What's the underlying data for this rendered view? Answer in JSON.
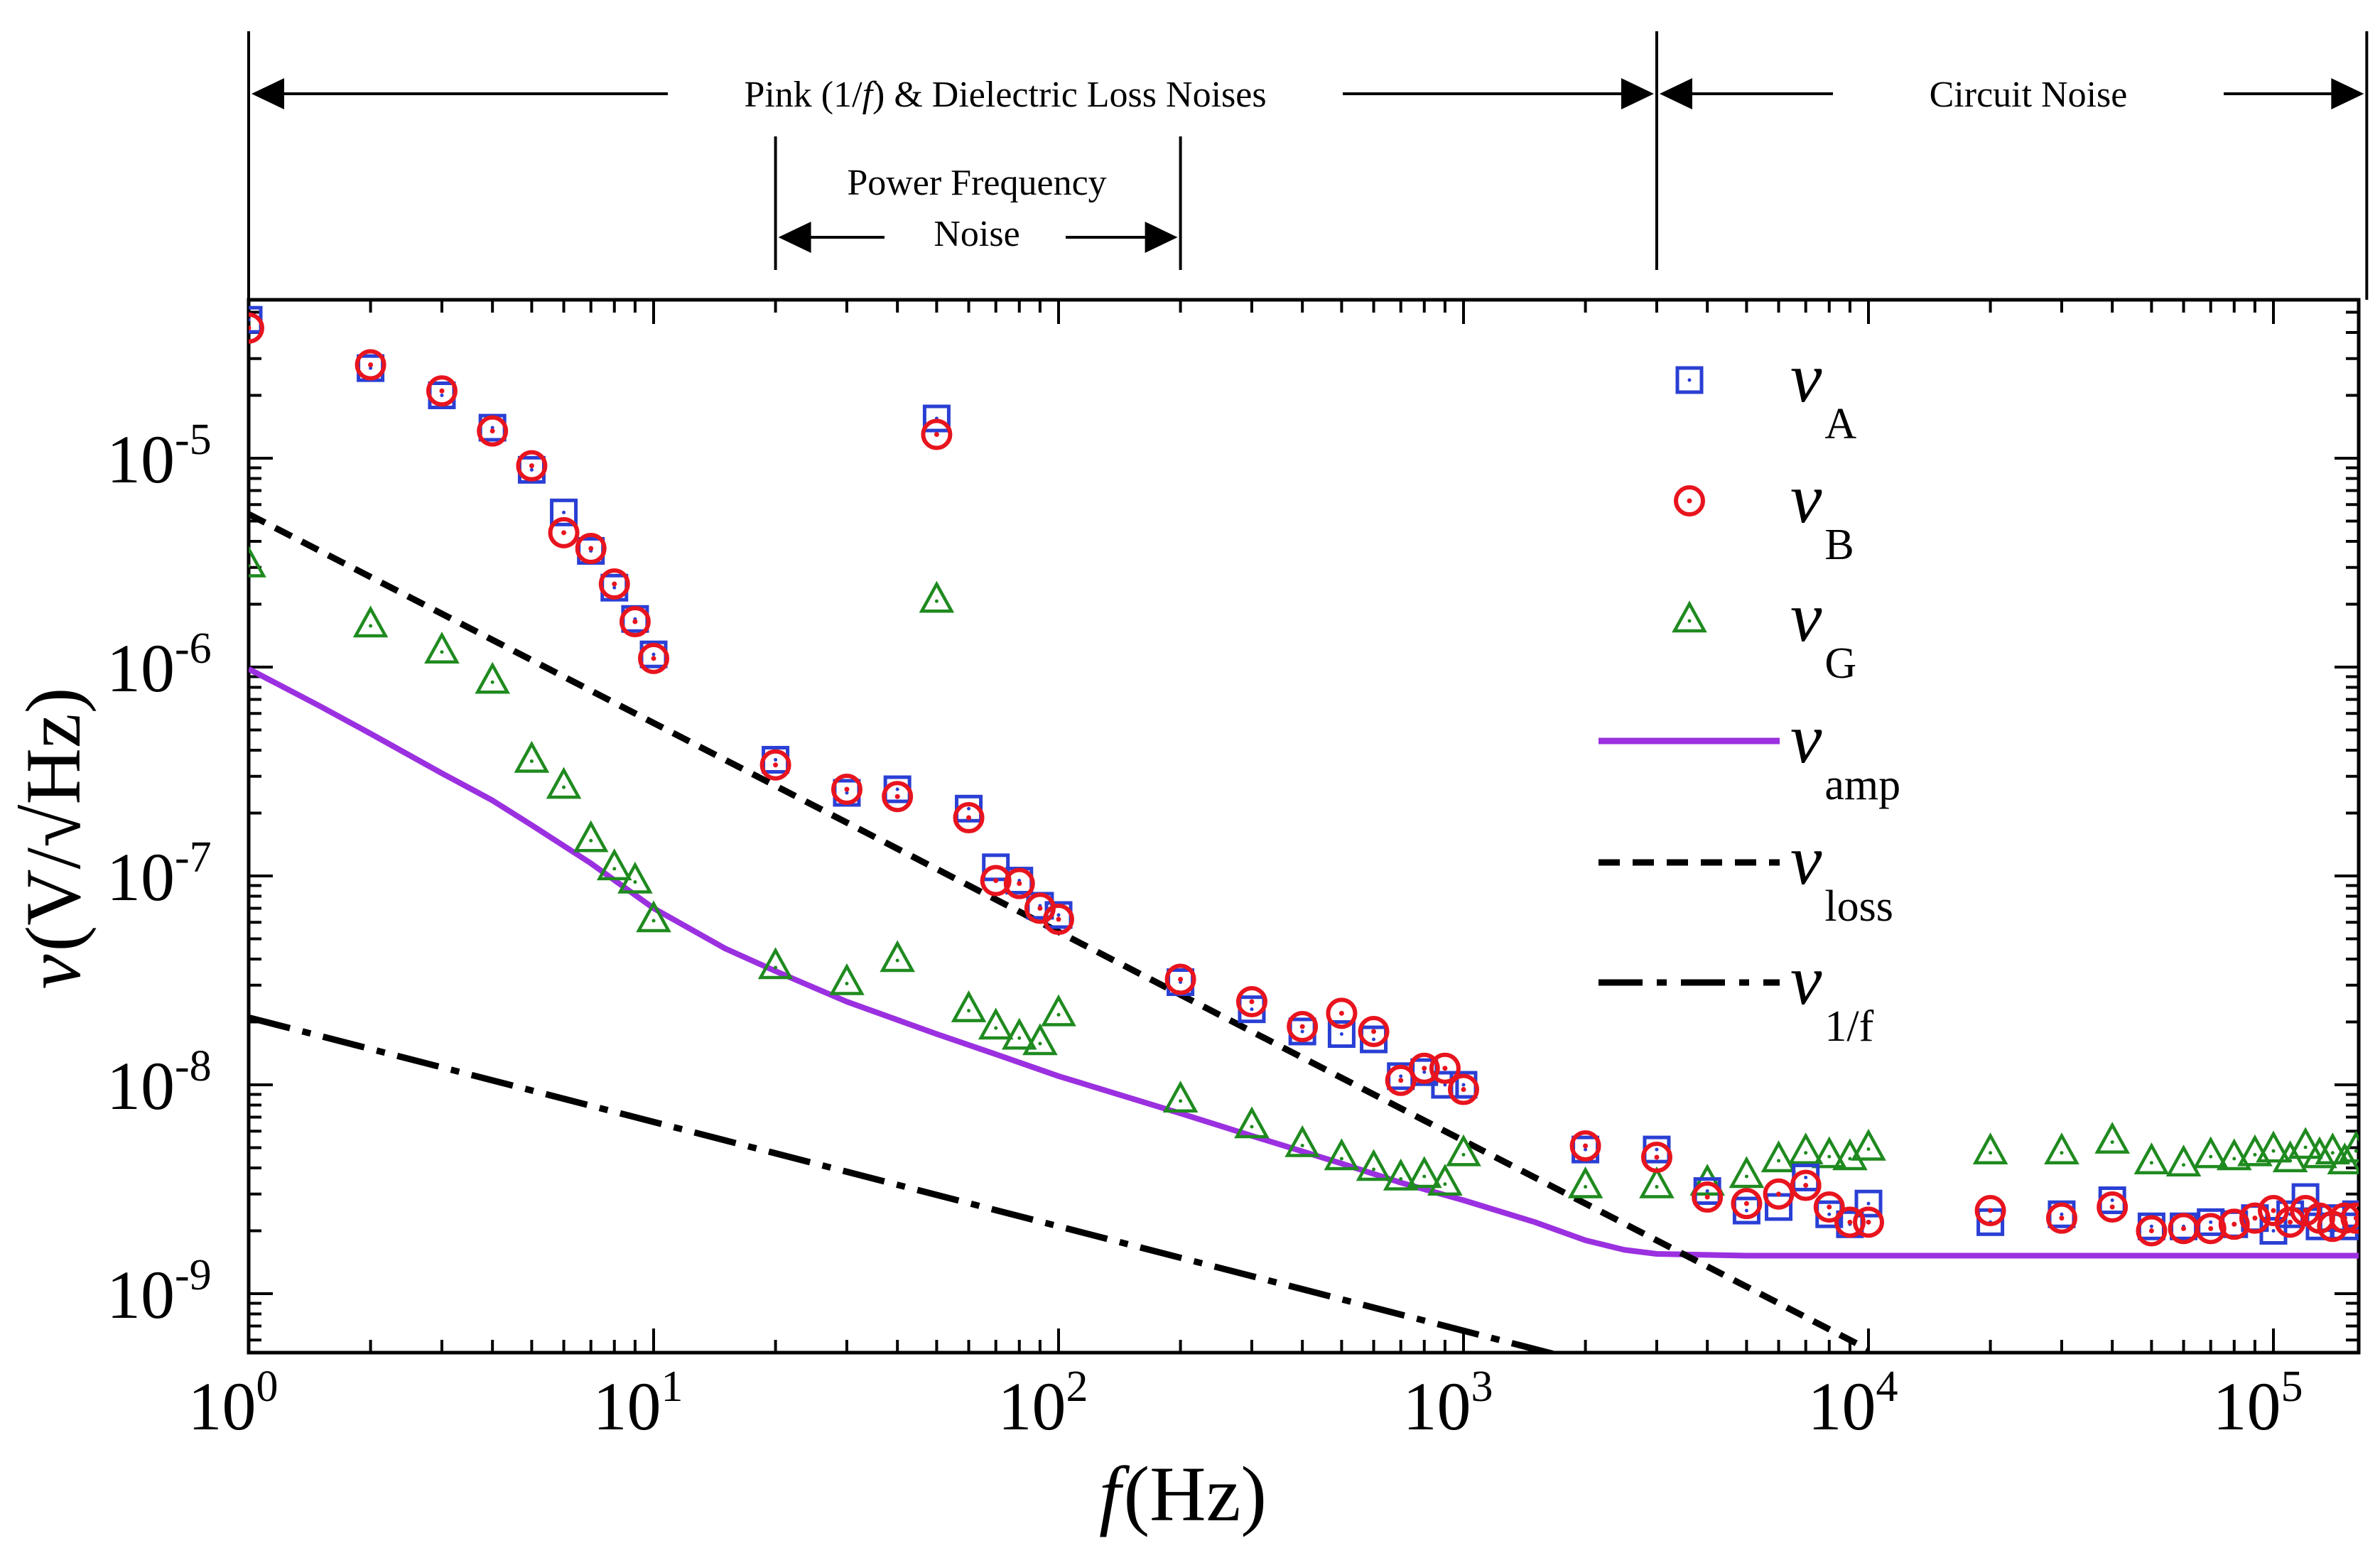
{
  "chart_data": {
    "type": "scatter",
    "title": "",
    "xlabel": "f",
    "xlabel_unit": "(Hz)",
    "ylabel": "v",
    "ylabel_unit": "(V/√Hz)",
    "xscale": "log",
    "yscale": "log",
    "xlim": [
      1,
      170000
    ],
    "ylim": [
      5e-10,
      6e-05
    ],
    "x_tick_labels": [
      {
        "base": "10",
        "exp": "0",
        "value": 1
      },
      {
        "base": "10",
        "exp": "1",
        "value": 10
      },
      {
        "base": "10",
        "exp": "2",
        "value": 100
      },
      {
        "base": "10",
        "exp": "3",
        "value": 1000
      },
      {
        "base": "10",
        "exp": "4",
        "value": 10000
      },
      {
        "base": "10",
        "exp": "5",
        "value": 100000
      }
    ],
    "y_tick_labels": [
      {
        "base": "10",
        "exp": "-9",
        "value": 1e-09
      },
      {
        "base": "10",
        "exp": "-8",
        "value": 1e-08
      },
      {
        "base": "10",
        "exp": "-7",
        "value": 1e-07
      },
      {
        "base": "10",
        "exp": "-6",
        "value": 1e-06
      },
      {
        "base": "10",
        "exp": "-5",
        "value": 1e-05
      }
    ],
    "bands": [
      {
        "label_parts": [
          "Pink (1/",
          "f",
          ") & Dielectric Loss Noises"
        ],
        "from": 1,
        "to": 3000
      },
      {
        "label": "Circuit Noise",
        "from": 3000,
        "to": 170000
      },
      {
        "label_line1": "Power Frequency",
        "label_line2": "Noise",
        "from": 20,
        "to": 200
      }
    ],
    "legend": [
      {
        "key": "vA",
        "symbol": "v",
        "sub": "A",
        "marker": "square",
        "color": "#2a3fd4"
      },
      {
        "key": "vB",
        "symbol": "v",
        "sub": "B",
        "marker": "circle",
        "color": "#e8141e"
      },
      {
        "key": "vG",
        "symbol": "v",
        "sub": "G",
        "marker": "triangle",
        "color": "#1f8a1f"
      },
      {
        "key": "vamp",
        "symbol": "v",
        "sub": "amp",
        "marker": "line-solid",
        "color": "#9b30e0"
      },
      {
        "key": "vloss",
        "symbol": "v",
        "sub": "loss",
        "marker": "line-dash",
        "color": "#000000"
      },
      {
        "key": "v1f",
        "symbol": "v",
        "sub": "1/f",
        "marker": "line-dashdot",
        "color": "#000000"
      }
    ],
    "series": [
      {
        "name": "vA",
        "marker": "square",
        "color": "#2a3fd4",
        "points": [
          [
            1,
            4.6e-05
          ],
          [
            2,
            2.7e-05
          ],
          [
            3,
            2e-05
          ],
          [
            4,
            1.4e-05
          ],
          [
            5,
            8.8e-06
          ],
          [
            6,
            5.5e-06
          ],
          [
            7,
            3.6e-06
          ],
          [
            8,
            2.4e-06
          ],
          [
            9,
            1.7e-06
          ],
          [
            10,
            1.15e-06
          ],
          [
            20,
            3.6e-07
          ],
          [
            30,
            2.5e-07
          ],
          [
            40,
            2.6e-07
          ],
          [
            50,
            1.55e-05
          ],
          [
            60,
            2.1e-07
          ],
          [
            70,
            1.1e-07
          ],
          [
            80,
            9.5e-08
          ],
          [
            90,
            7.2e-08
          ],
          [
            100,
            6.5e-08
          ],
          [
            200,
            3.1e-08
          ],
          [
            300,
            2.3e-08
          ],
          [
            400,
            1.8e-08
          ],
          [
            500,
            1.75e-08
          ],
          [
            600,
            1.65e-08
          ],
          [
            700,
            1.1e-08
          ],
          [
            800,
            1.15e-08
          ],
          [
            900,
            1e-08
          ],
          [
            1000,
            1e-08
          ],
          [
            2000,
            4.9e-09
          ],
          [
            3000,
            4.9e-09
          ],
          [
            4000,
            3.1e-09
          ],
          [
            5000,
            2.5e-09
          ],
          [
            6000,
            2.6e-09
          ],
          [
            7000,
            3.6e-09
          ],
          [
            8000,
            2.4e-09
          ],
          [
            9000,
            2.15e-09
          ],
          [
            10000,
            2.7e-09
          ],
          [
            20000,
            2.2e-09
          ],
          [
            30000,
            2.4e-09
          ],
          [
            40000,
            2.8e-09
          ],
          [
            50000,
            2.1e-09
          ],
          [
            60000,
            2.1e-09
          ],
          [
            70000,
            2.2e-09
          ],
          [
            80000,
            2.15e-09
          ],
          [
            90000,
            2.3e-09
          ],
          [
            100000,
            2e-09
          ],
          [
            110000,
            2.4e-09
          ],
          [
            120000,
            2.9e-09
          ],
          [
            130000,
            2.1e-09
          ],
          [
            140000,
            2.3e-09
          ],
          [
            150000,
            2.1e-09
          ],
          [
            160000,
            2.4e-09
          ]
        ]
      },
      {
        "name": "vB",
        "marker": "circle",
        "color": "#e8141e",
        "points": [
          [
            1,
            4.2e-05
          ],
          [
            2,
            2.8e-05
          ],
          [
            3,
            2.1e-05
          ],
          [
            4,
            1.35e-05
          ],
          [
            5,
            9.2e-06
          ],
          [
            6,
            4.4e-06
          ],
          [
            7,
            3.7e-06
          ],
          [
            8,
            2.5e-06
          ],
          [
            9,
            1.65e-06
          ],
          [
            10,
            1.1e-06
          ],
          [
            20,
            3.4e-07
          ],
          [
            30,
            2.6e-07
          ],
          [
            40,
            2.4e-07
          ],
          [
            50,
            1.3e-05
          ],
          [
            60,
            1.9e-07
          ],
          [
            70,
            9.5e-08
          ],
          [
            80,
            9.2e-08
          ],
          [
            90,
            7e-08
          ],
          [
            100,
            6.2e-08
          ],
          [
            200,
            3.2e-08
          ],
          [
            300,
            2.5e-08
          ],
          [
            400,
            1.9e-08
          ],
          [
            500,
            2.2e-08
          ],
          [
            600,
            1.8e-08
          ],
          [
            700,
            1.05e-08
          ],
          [
            800,
            1.2e-08
          ],
          [
            900,
            1.2e-08
          ],
          [
            1000,
            9.5e-09
          ],
          [
            2000,
            5.1e-09
          ],
          [
            3000,
            4.5e-09
          ],
          [
            4000,
            2.9e-09
          ],
          [
            5000,
            2.7e-09
          ],
          [
            6000,
            3e-09
          ],
          [
            7000,
            3.3e-09
          ],
          [
            8000,
            2.6e-09
          ],
          [
            9000,
            2.2e-09
          ],
          [
            10000,
            2.2e-09
          ],
          [
            20000,
            2.5e-09
          ],
          [
            30000,
            2.3e-09
          ],
          [
            40000,
            2.6e-09
          ],
          [
            50000,
            2e-09
          ],
          [
            60000,
            2.05e-09
          ],
          [
            70000,
            2.05e-09
          ],
          [
            80000,
            2.15e-09
          ],
          [
            90000,
            2.3e-09
          ],
          [
            100000,
            2.5e-09
          ],
          [
            110000,
            2.2e-09
          ],
          [
            120000,
            2.5e-09
          ],
          [
            130000,
            2.3e-09
          ],
          [
            140000,
            2.1e-09
          ],
          [
            150000,
            2.3e-09
          ],
          [
            160000,
            2.3e-09
          ]
        ]
      },
      {
        "name": "vG",
        "marker": "triangle",
        "color": "#1f8a1f",
        "points": [
          [
            1,
            3.1e-06
          ],
          [
            2,
            1.6e-06
          ],
          [
            3,
            1.2e-06
          ],
          [
            4,
            8.6e-07
          ],
          [
            5,
            3.6e-07
          ],
          [
            6,
            2.7e-07
          ],
          [
            7,
            1.5e-07
          ],
          [
            8,
            1.1e-07
          ],
          [
            9,
            9.5e-08
          ],
          [
            10,
            6.2e-08
          ],
          [
            20,
            3.7e-08
          ],
          [
            30,
            3.1e-08
          ],
          [
            40,
            4e-08
          ],
          [
            50,
            2.1e-06
          ],
          [
            60,
            2.3e-08
          ],
          [
            70,
            1.9e-08
          ],
          [
            80,
            1.7e-08
          ],
          [
            90,
            1.6e-08
          ],
          [
            100,
            2.2e-08
          ],
          [
            200,
            8.5e-09
          ],
          [
            300,
            6.4e-09
          ],
          [
            400,
            5.2e-09
          ],
          [
            500,
            4.5e-09
          ],
          [
            600,
            4e-09
          ],
          [
            700,
            3.6e-09
          ],
          [
            800,
            3.7e-09
          ],
          [
            900,
            3.4e-09
          ],
          [
            1000,
            4.7e-09
          ],
          [
            2000,
            3.3e-09
          ],
          [
            3000,
            3.3e-09
          ],
          [
            4000,
            3.4e-09
          ],
          [
            5000,
            3.7e-09
          ],
          [
            6000,
            4.4e-09
          ],
          [
            7000,
            4.8e-09
          ],
          [
            8000,
            4.6e-09
          ],
          [
            9000,
            4.5e-09
          ],
          [
            10000,
            5e-09
          ],
          [
            20000,
            4.8e-09
          ],
          [
            30000,
            4.8e-09
          ],
          [
            40000,
            5.4e-09
          ],
          [
            50000,
            4.3e-09
          ],
          [
            60000,
            4.2e-09
          ],
          [
            70000,
            4.6e-09
          ],
          [
            80000,
            4.5e-09
          ],
          [
            90000,
            4.7e-09
          ],
          [
            100000,
            4.9e-09
          ],
          [
            110000,
            4.4e-09
          ],
          [
            120000,
            5.1e-09
          ],
          [
            130000,
            4.6e-09
          ],
          [
            140000,
            4.8e-09
          ],
          [
            150000,
            4.3e-09
          ],
          [
            160000,
            4.9e-09
          ]
        ]
      },
      {
        "name": "vamp",
        "marker": "line-solid",
        "color": "#9b30e0",
        "model": "floor + one_over_f / sqrt-ish",
        "points": [
          [
            1,
            9.8e-07
          ],
          [
            1.5,
            6.5e-07
          ],
          [
            2,
            4.8e-07
          ],
          [
            3,
            3.1e-07
          ],
          [
            4,
            2.3e-07
          ],
          [
            5,
            1.75e-07
          ],
          [
            7,
            1.15e-07
          ],
          [
            10,
            7e-08
          ],
          [
            15,
            4.5e-08
          ],
          [
            20,
            3.5e-08
          ],
          [
            30,
            2.5e-08
          ],
          [
            50,
            1.75e-08
          ],
          [
            70,
            1.4e-08
          ],
          [
            100,
            1.1e-08
          ],
          [
            200,
            7.3e-09
          ],
          [
            300,
            5.7e-09
          ],
          [
            500,
            4.2e-09
          ],
          [
            700,
            3.4e-09
          ],
          [
            1000,
            2.8e-09
          ],
          [
            1500,
            2.2e-09
          ],
          [
            2000,
            1.8e-09
          ],
          [
            2500,
            1.62e-09
          ],
          [
            3000,
            1.55e-09
          ],
          [
            5000,
            1.52e-09
          ],
          [
            10000,
            1.52e-09
          ],
          [
            100000,
            1.52e-09
          ],
          [
            170000,
            1.52e-09
          ]
        ]
      },
      {
        "name": "vloss",
        "marker": "line-dash",
        "color": "#000000",
        "points": [
          [
            1,
            5.4e-06
          ],
          [
            10000,
            5.4e-10
          ]
        ]
      },
      {
        "name": "v1f",
        "marker": "line-dashdot",
        "color": "#000000",
        "points": [
          [
            1,
            2.1e-08
          ],
          [
            2000,
            4.7e-10
          ]
        ]
      }
    ]
  }
}
